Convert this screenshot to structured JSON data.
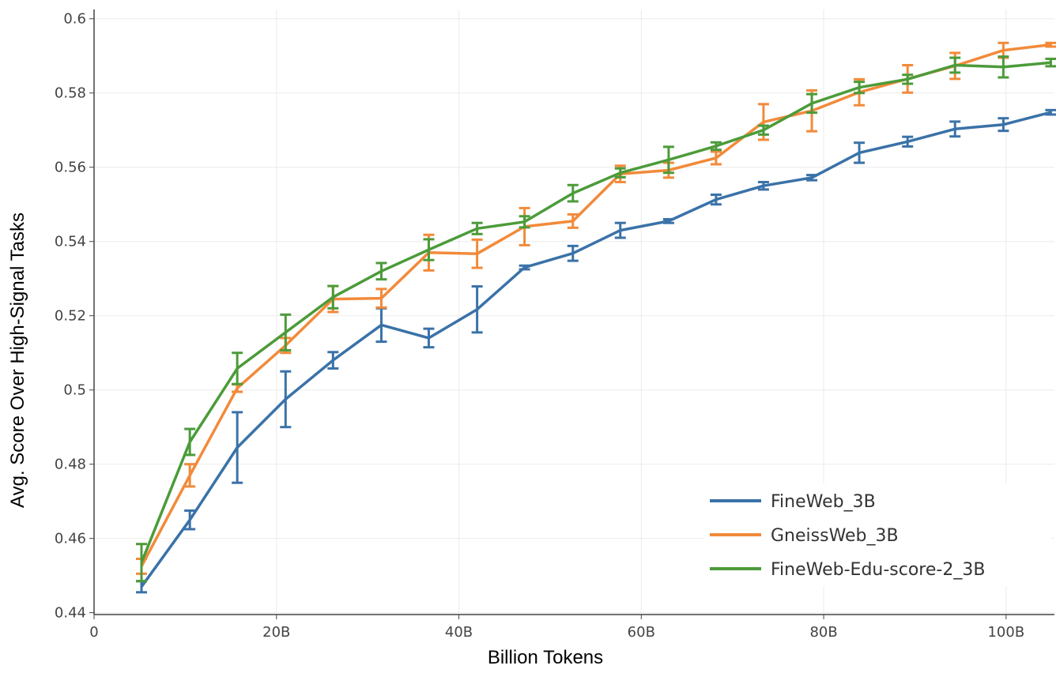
{
  "chart_data": {
    "type": "line",
    "xlabel": "Billion Tokens",
    "ylabel": "Avg. Score Over High-Signal Tasks",
    "xlim": [
      0,
      105.3
    ],
    "ylim": [
      0.4395,
      0.6025
    ],
    "x_ticks": [
      0,
      20,
      40,
      60,
      80,
      100
    ],
    "x_tick_labels": [
      "0",
      "20B",
      "40B",
      "60B",
      "80B",
      "100B"
    ],
    "y_ticks": [
      0.44,
      0.46,
      0.48,
      0.5,
      0.52,
      0.54,
      0.56,
      0.58,
      0.6
    ],
    "y_tick_labels": [
      "0.44",
      "0.46",
      "0.48",
      "0.5",
      "0.52",
      "0.54",
      "0.56",
      "0.58",
      "0.6"
    ],
    "grid": true,
    "legend_position": "bottom-right",
    "x": [
      5.2,
      10.5,
      15.7,
      21.0,
      26.2,
      31.5,
      36.7,
      42.0,
      47.2,
      52.5,
      57.7,
      63.0,
      68.2,
      73.4,
      78.7,
      83.9,
      89.2,
      94.4,
      99.7,
      104.9
    ],
    "series": [
      {
        "name": "FineWeb_3B",
        "color": "#3a72a8",
        "values": [
          0.447,
          0.465,
          0.4845,
          0.4975,
          0.508,
          0.5175,
          0.514,
          0.5217,
          0.533,
          0.5368,
          0.543,
          0.5455,
          0.5513,
          0.555,
          0.5572,
          0.5639,
          0.5669,
          0.5703,
          0.5715,
          0.5748
        ],
        "errors": [
          0.0015,
          0.0025,
          0.0095,
          0.0075,
          0.0022,
          0.0045,
          0.0025,
          0.0062,
          0.0005,
          0.002,
          0.002,
          0.0005,
          0.0013,
          0.001,
          0.0007,
          0.0027,
          0.0013,
          0.002,
          0.0017,
          0.0006
        ]
      },
      {
        "name": "GneissWeb_3B",
        "color": "#f28a3a",
        "values": [
          0.4525,
          0.477,
          0.5005,
          0.512,
          0.5245,
          0.5247,
          0.537,
          0.5367,
          0.544,
          0.5455,
          0.5582,
          0.5592,
          0.5625,
          0.5722,
          0.5752,
          0.5802,
          0.5838,
          0.5873,
          0.5915,
          0.593
        ],
        "errors": [
          0.002,
          0.003,
          0.001,
          0.002,
          0.0035,
          0.0025,
          0.0048,
          0.0038,
          0.005,
          0.0018,
          0.0022,
          0.002,
          0.0017,
          0.0048,
          0.0055,
          0.0035,
          0.0037,
          0.0035,
          0.002,
          0.0005
        ]
      },
      {
        "name": "FineWeb-Edu-score-2_3B",
        "color": "#4c9b3a",
        "values": [
          0.4535,
          0.486,
          0.5058,
          0.5155,
          0.525,
          0.532,
          0.5378,
          0.5435,
          0.5453,
          0.553,
          0.5585,
          0.562,
          0.5657,
          0.57,
          0.5772,
          0.5815,
          0.5837,
          0.5875,
          0.587,
          0.5882
        ],
        "errors": [
          0.005,
          0.0035,
          0.0042,
          0.0048,
          0.003,
          0.0022,
          0.0028,
          0.0015,
          0.0015,
          0.0022,
          0.0012,
          0.0035,
          0.001,
          0.0012,
          0.0025,
          0.0015,
          0.0012,
          0.002,
          0.0028,
          0.001
        ]
      }
    ]
  }
}
